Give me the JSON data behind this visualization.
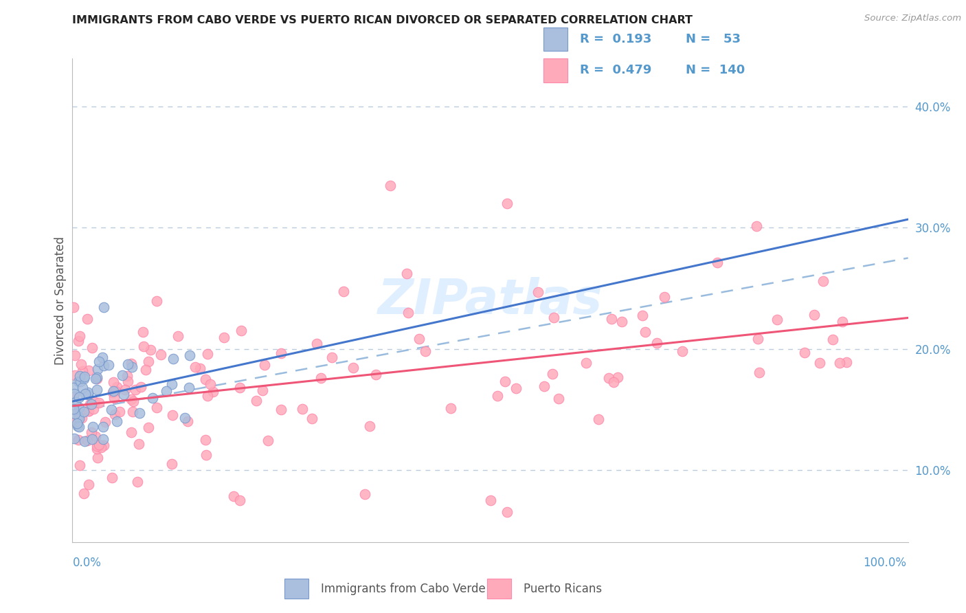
{
  "title": "IMMIGRANTS FROM CABO VERDE VS PUERTO RICAN DIVORCED OR SEPARATED CORRELATION CHART",
  "source_text": "Source: ZipAtlas.com",
  "ylabel": "Divorced or Separated",
  "ytick_values": [
    0.1,
    0.2,
    0.3,
    0.4
  ],
  "ytick_labels": [
    "10.0%",
    "20.0%",
    "30.0%",
    "40.0%"
  ],
  "legend_r1": "R =  0.193",
  "legend_n1": "N =   53",
  "legend_r2": "R =  0.479",
  "legend_n2": "N =  140",
  "legend_label1": "Immigrants from Cabo Verde",
  "legend_label2": "Puerto Ricans",
  "color_blue_fill": "#AABFDD",
  "color_blue_edge": "#7799CC",
  "color_pink_fill": "#FFAABB",
  "color_pink_edge": "#FF88AA",
  "color_blue_line": "#4477CC",
  "color_pink_line": "#EE5577",
  "color_dashed": "#99BBDD",
  "background_color": "#FFFFFF",
  "grid_color": "#BBCCDD",
  "title_color": "#222222",
  "axis_label_color": "#555555",
  "tick_color": "#5599CC",
  "watermark_color": "#DDEEFF",
  "ylim_min": 0.04,
  "ylim_max": 0.44
}
